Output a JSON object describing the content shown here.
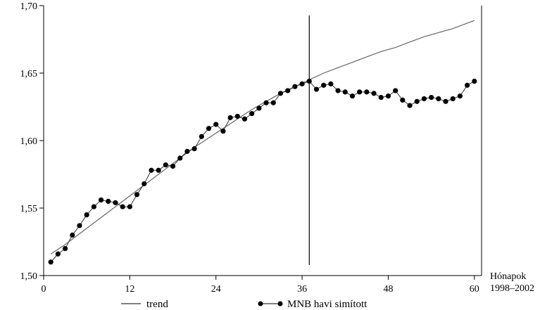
{
  "chart_data": {
    "type": "line",
    "x_label_lines": [
      "Hónapok",
      "1998–2002"
    ],
    "xlim": [
      0,
      61
    ],
    "ylim": [
      1.5,
      1.7
    ],
    "x_ticks": [
      0,
      12,
      24,
      36,
      48,
      60
    ],
    "x_tick_labels": [
      "0",
      "12",
      "24",
      "36",
      "48",
      "60"
    ],
    "y_ticks": [
      1.5,
      1.55,
      1.6,
      1.65,
      1.7
    ],
    "y_tick_labels": [
      "1,50",
      "1,55",
      "1,60",
      "1,65",
      "1,70"
    ],
    "vertical_line_x": 37,
    "grid": false,
    "legend_position": "bottom",
    "series": [
      {
        "name": "trend",
        "style": "line",
        "x": [
          1,
          3,
          5,
          7,
          9,
          11,
          13,
          15,
          17,
          19,
          21,
          23,
          25,
          27,
          29,
          31,
          33,
          35,
          37,
          39,
          41,
          43,
          45,
          47,
          49,
          51,
          53,
          55,
          57,
          59,
          60
        ],
        "values": [
          1.516,
          1.523,
          1.531,
          1.539,
          1.547,
          1.555,
          1.563,
          1.571,
          1.579,
          1.587,
          1.595,
          1.602,
          1.609,
          1.616,
          1.623,
          1.629,
          1.635,
          1.64,
          1.645,
          1.65,
          1.654,
          1.658,
          1.662,
          1.666,
          1.669,
          1.673,
          1.677,
          1.68,
          1.683,
          1.687,
          1.689
        ]
      },
      {
        "name": "MNB havi simított",
        "style": "line-markers",
        "x": [
          1,
          2,
          3,
          4,
          5,
          6,
          7,
          8,
          9,
          10,
          11,
          12,
          13,
          14,
          15,
          16,
          17,
          18,
          19,
          20,
          21,
          22,
          23,
          24,
          25,
          26,
          27,
          28,
          29,
          30,
          31,
          32,
          33,
          34,
          35,
          36,
          37,
          38,
          39,
          40,
          41,
          42,
          43,
          44,
          45,
          46,
          47,
          48,
          49,
          50,
          51,
          52,
          53,
          54,
          55,
          56,
          57,
          58,
          59,
          60
        ],
        "values": [
          1.51,
          1.516,
          1.52,
          1.53,
          1.537,
          1.545,
          1.551,
          1.556,
          1.555,
          1.554,
          1.551,
          1.551,
          1.56,
          1.568,
          1.578,
          1.578,
          1.582,
          1.581,
          1.587,
          1.592,
          1.594,
          1.603,
          1.609,
          1.612,
          1.607,
          1.617,
          1.618,
          1.616,
          1.62,
          1.624,
          1.628,
          1.628,
          1.635,
          1.637,
          1.64,
          1.642,
          1.644,
          1.638,
          1.641,
          1.642,
          1.637,
          1.636,
          1.633,
          1.636,
          1.636,
          1.635,
          1.632,
          1.633,
          1.637,
          1.63,
          1.626,
          1.629,
          1.631,
          1.632,
          1.631,
          1.629,
          1.631,
          1.633,
          1.641,
          1.644
        ]
      }
    ]
  }
}
